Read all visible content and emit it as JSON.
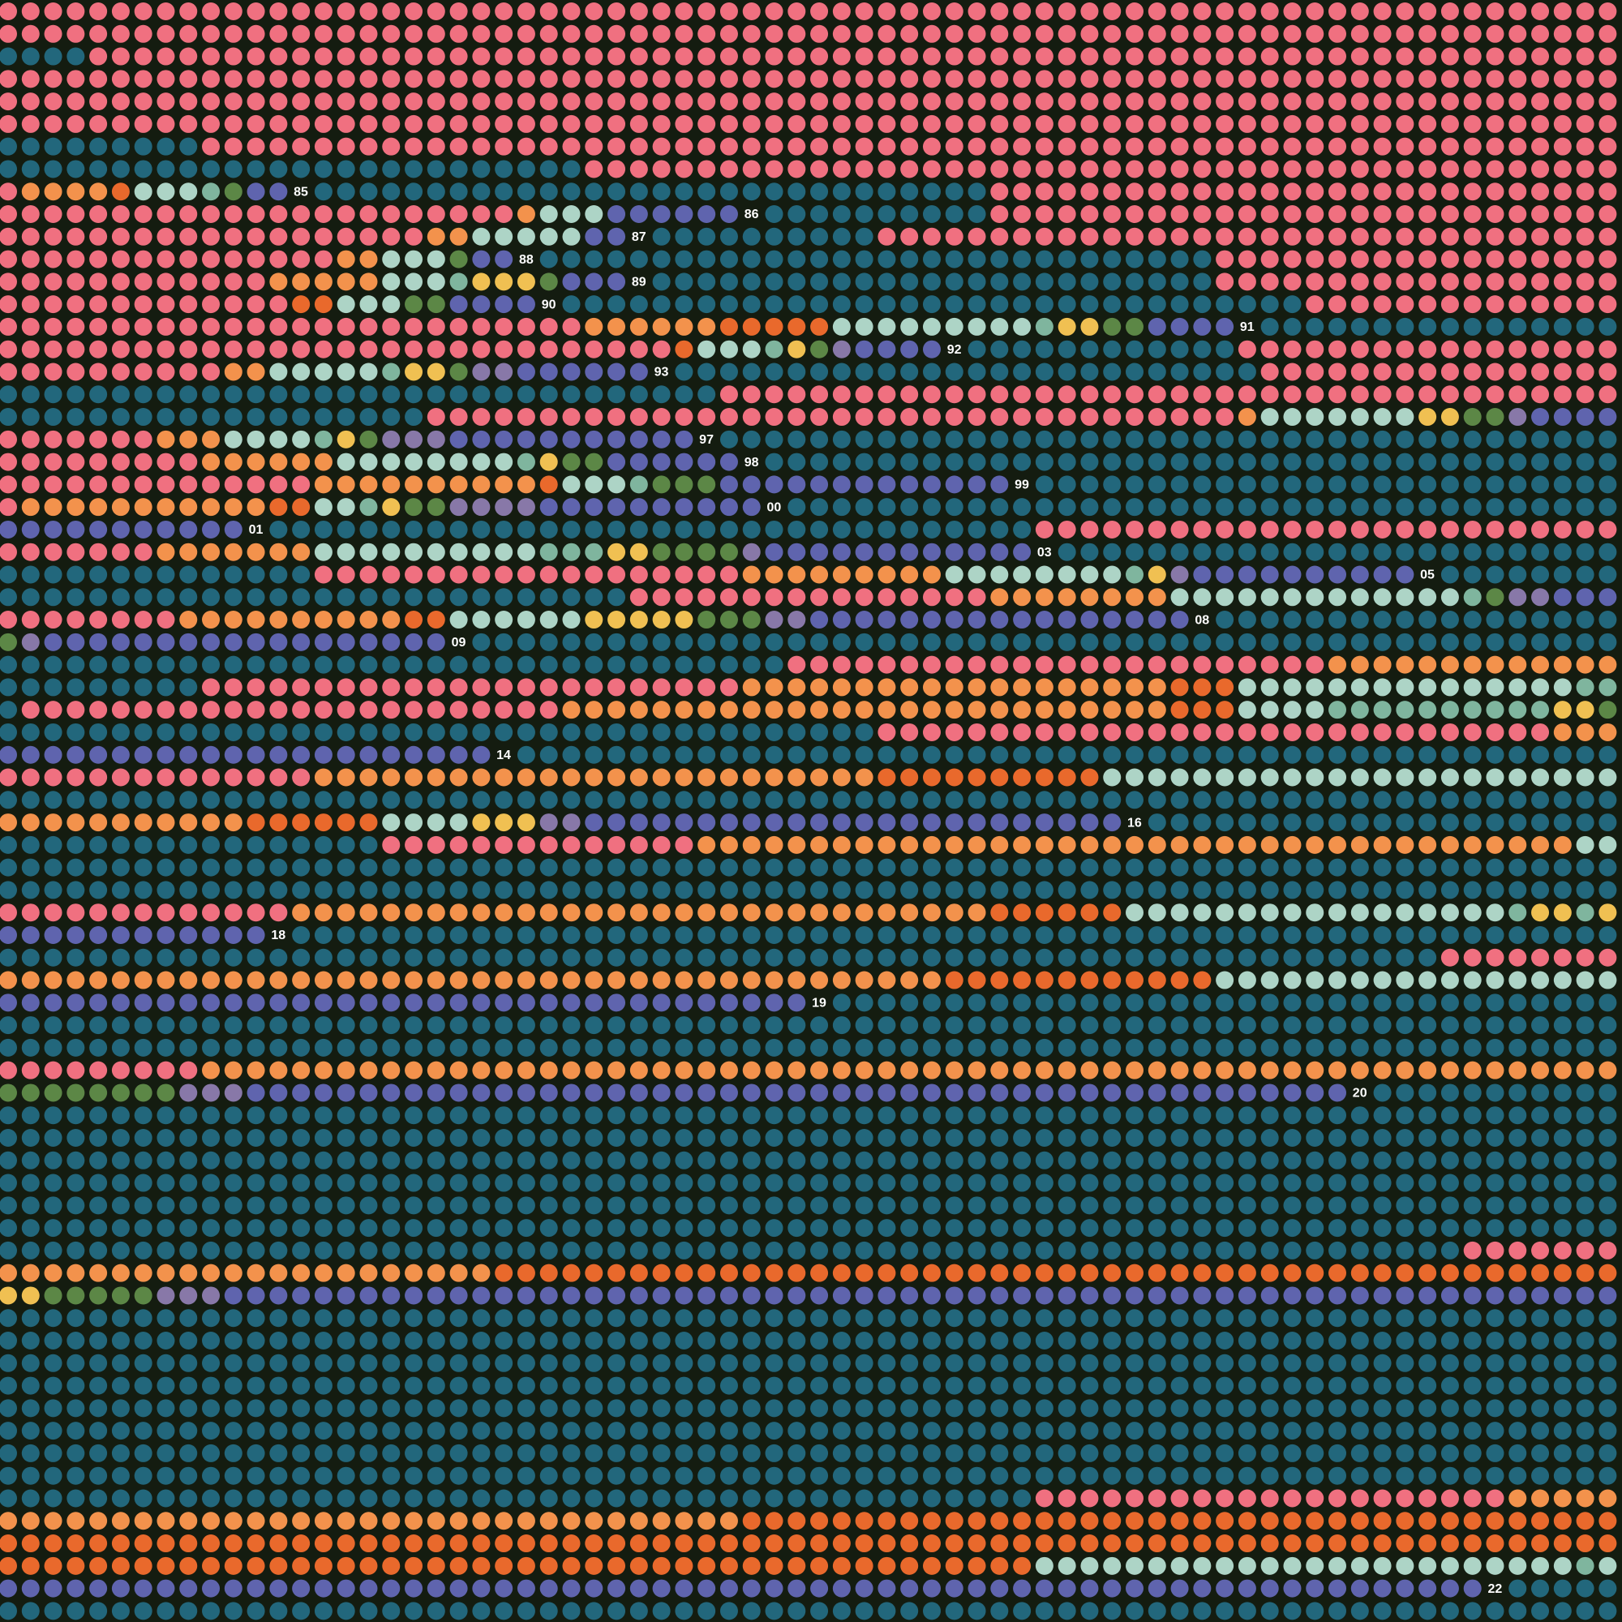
{
  "labels": [
    "85",
    "86",
    "87",
    "88",
    "89",
    "90",
    "91",
    "92",
    "93",
    "97",
    "98",
    "99",
    "00",
    "01",
    "03",
    "05",
    "08",
    "09",
    "14",
    "16",
    "18",
    "19",
    "20",
    "22"
  ]
}
